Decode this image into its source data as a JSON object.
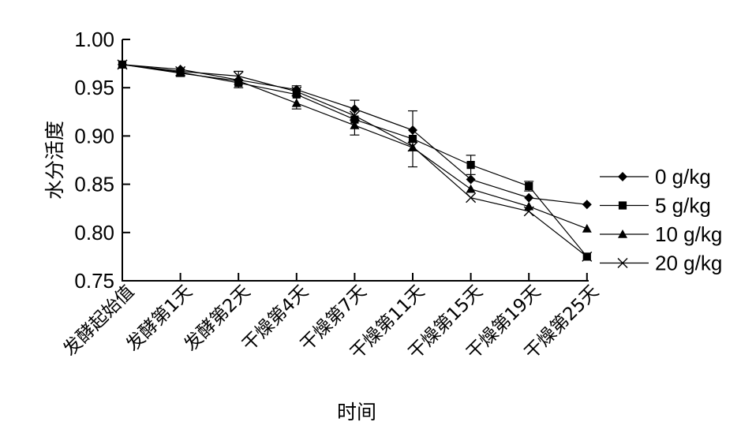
{
  "chart_data": {
    "type": "line",
    "title": "",
    "xlabel": "时间",
    "ylabel": "水分活度",
    "ylim": [
      0.75,
      1.0
    ],
    "y_ticks": [
      "0.75",
      "0.80",
      "0.85",
      "0.90",
      "0.95",
      "1.00"
    ],
    "grid": false,
    "legend_position": "right",
    "categories": [
      "发酵起始值",
      "发酵第1天",
      "发酵第2天",
      "干燥第4天",
      "干燥第7天",
      "干燥第11天",
      "干燥第15天",
      "干燥第19天",
      "干燥第25天"
    ],
    "series": [
      {
        "name": "0 g/kg",
        "marker": "diamond",
        "values": [
          0.974,
          0.969,
          0.958,
          0.948,
          0.928,
          0.906,
          0.855,
          0.836,
          0.829
        ]
      },
      {
        "name": "5 g/kg",
        "marker": "square",
        "values": [
          0.974,
          0.966,
          0.955,
          0.943,
          0.917,
          0.897,
          0.87,
          0.848,
          0.775
        ]
      },
      {
        "name": "10 g/kg",
        "marker": "triangle",
        "values": [
          0.974,
          0.965,
          0.957,
          0.934,
          0.911,
          0.888,
          0.845,
          0.827,
          0.804
        ]
      },
      {
        "name": "20 g/kg",
        "marker": "cross",
        "values": [
          0.974,
          0.967,
          0.962,
          0.946,
          0.921,
          0.889,
          0.836,
          0.822,
          0.775
        ]
      }
    ],
    "error_bars": [
      {
        "category": "发酵第2天",
        "low": 0.95,
        "high": 0.967
      },
      {
        "category": "干燥第4天",
        "low": 0.928,
        "high": 0.952
      },
      {
        "category": "干燥第7天",
        "low": 0.901,
        "high": 0.937
      },
      {
        "category": "干燥第11天",
        "low": 0.868,
        "high": 0.926
      },
      {
        "category": "干燥第15天",
        "low": 0.86,
        "high": 0.88
      },
      {
        "category": "干燥第19天",
        "low": 0.843,
        "high": 0.853
      }
    ]
  }
}
